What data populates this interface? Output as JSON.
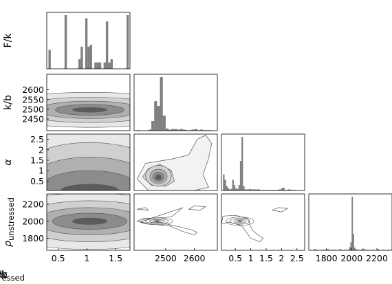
{
  "chart_data": {
    "type": "corner",
    "grid": false,
    "parameters": [
      {
        "key": "Fk",
        "label": "F/k",
        "range": [
          0.3,
          1.75
        ],
        "ticks": [
          "0.5",
          "1",
          "1.5"
        ],
        "tick_values": [
          0.5,
          1.0,
          1.5
        ]
      },
      {
        "key": "kb",
        "label": "k/b",
        "range": [
          2390,
          2680
        ],
        "ticks": [
          "2450",
          "2500",
          "2550",
          "2600"
        ],
        "tick_values": [
          2450,
          2500,
          2550,
          2600
        ],
        "x_ticks": [
          "2500",
          "2600"
        ],
        "x_tick_values": [
          2500,
          2600
        ]
      },
      {
        "key": "alpha",
        "label": "α",
        "range": [
          0.05,
          2.75
        ],
        "ticks": [
          "0.5",
          "1",
          "1.5",
          "2",
          "2.5"
        ],
        "tick_values": [
          0.5,
          1.0,
          1.5,
          2.0,
          2.5
        ]
      },
      {
        "key": "rho",
        "label_base": "ρ",
        "label_sub": "unstressed",
        "range": [
          1660,
          2320
        ],
        "ticks": [
          "1800",
          "2000",
          "2200"
        ],
        "tick_values": [
          1800,
          2000,
          2200
        ]
      }
    ],
    "histograms": {
      "Fk": {
        "bins": [
          0.33,
          0.37,
          0.41,
          0.45,
          0.49,
          0.53,
          0.57,
          0.61,
          0.65,
          0.69,
          0.73,
          0.77,
          0.81,
          0.85,
          0.89,
          0.93,
          0.97,
          1.01,
          1.05,
          1.09,
          1.13,
          1.17,
          1.21,
          1.25,
          1.29,
          1.33,
          1.37,
          1.41,
          1.45,
          1.49,
          1.53,
          1.57,
          1.61,
          1.65,
          1.69,
          1.73
        ],
        "counts": [
          30,
          0,
          0,
          0,
          0,
          0,
          0,
          85,
          0,
          0,
          0,
          0,
          0,
          15,
          35,
          0,
          80,
          35,
          38,
          0,
          10,
          10,
          10,
          0,
          10,
          75,
          10,
          15,
          0,
          0,
          0,
          0,
          0,
          0,
          85,
          0
        ]
      },
      "kb": {
        "bins": [
          2400,
          2410,
          2420,
          2430,
          2440,
          2450,
          2460,
          2470,
          2480,
          2490,
          2500,
          2510,
          2520,
          2530,
          2540,
          2550,
          2560,
          2570,
          2580,
          2590,
          2600,
          2610,
          2620,
          2630,
          2640,
          2650
        ],
        "counts": [
          1,
          0,
          0,
          0,
          2,
          18,
          55,
          46,
          100,
          28,
          4,
          2,
          3,
          3,
          2,
          3,
          2,
          1,
          1,
          2,
          3,
          1,
          2,
          1,
          1,
          1
        ]
      },
      "alpha": {
        "bins": [
          0.1,
          0.15,
          0.2,
          0.25,
          0.3,
          0.35,
          0.4,
          0.45,
          0.5,
          0.55,
          0.6,
          0.65,
          0.7,
          0.75,
          0.8,
          0.85,
          0.9,
          0.95,
          1.0,
          1.1,
          1.2,
          1.3,
          1.4,
          1.5,
          1.6,
          1.7,
          1.8,
          1.9,
          2.0,
          2.1,
          2.2,
          2.3,
          2.4
        ],
        "counts": [
          30,
          20,
          8,
          4,
          2,
          3,
          20,
          10,
          4,
          3,
          10,
          55,
          100,
          8,
          2,
          2,
          2,
          3,
          2,
          2,
          2,
          1,
          1,
          1,
          1,
          1,
          1,
          2,
          5,
          1,
          2,
          1,
          1
        ]
      },
      "rho": {
        "bins": [
          1700,
          1720,
          1740,
          1760,
          1780,
          1800,
          1820,
          1840,
          1860,
          1880,
          1900,
          1920,
          1940,
          1960,
          1980,
          1990,
          2000,
          2010,
          2020,
          2030,
          2040,
          2060,
          2080,
          2100,
          2120,
          2140,
          2160,
          2180,
          2200,
          2220,
          2240,
          2260,
          2280
        ],
        "counts": [
          2,
          1,
          0,
          1,
          1,
          2,
          1,
          1,
          1,
          0,
          2,
          0,
          1,
          1,
          6,
          15,
          100,
          30,
          5,
          2,
          1,
          1,
          3,
          1,
          1,
          0,
          1,
          0,
          2,
          0,
          1,
          0,
          1
        ]
      }
    },
    "contour_panels": [
      {
        "x": "Fk",
        "y": "kb",
        "ellipses": [
          {
            "cx": 1.05,
            "cy": 2497,
            "rx": 1.8,
            "ry": 90,
            "fill": "#e8e8e8"
          },
          {
            "cx": 1.05,
            "cy": 2497,
            "rx": 1.3,
            "ry": 65,
            "fill": "#d0d0d0"
          },
          {
            "cx": 1.05,
            "cy": 2497,
            "rx": 0.9,
            "ry": 45,
            "fill": "#b0b0b0"
          },
          {
            "cx": 1.05,
            "cy": 2497,
            "rx": 0.6,
            "ry": 28,
            "fill": "#8c8c8c"
          },
          {
            "cx": 1.05,
            "cy": 2497,
            "rx": 0.3,
            "ry": 12,
            "fill": "#5c5c5c"
          }
        ]
      },
      {
        "x": "Fk",
        "y": "alpha",
        "ellipses": [
          {
            "cx": 1.05,
            "cy": 0.55,
            "rx": 1.8,
            "ry": 2.6,
            "fill": "#e8e8e8"
          },
          {
            "cx": 1.05,
            "cy": 0.45,
            "rx": 1.4,
            "ry": 1.9,
            "fill": "#d0d0d0"
          },
          {
            "cx": 1.05,
            "cy": 0.35,
            "rx": 1.1,
            "ry": 1.3,
            "fill": "#b0b0b0"
          },
          {
            "cx": 1.05,
            "cy": 0.2,
            "rx": 0.85,
            "ry": 0.8,
            "fill": "#8c8c8c"
          },
          {
            "cx": 1.05,
            "cy": 0.05,
            "rx": 0.5,
            "ry": 0.3,
            "fill": "#5c5c5c"
          }
        ]
      },
      {
        "x": "Fk",
        "y": "rho",
        "ellipses": [
          {
            "cx": 1.05,
            "cy": 2000,
            "rx": 1.8,
            "ry": 330,
            "fill": "#e8e8e8"
          },
          {
            "cx": 1.05,
            "cy": 2000,
            "rx": 1.3,
            "ry": 240,
            "fill": "#d0d0d0"
          },
          {
            "cx": 1.05,
            "cy": 2000,
            "rx": 0.95,
            "ry": 160,
            "fill": "#b0b0b0"
          },
          {
            "cx": 1.05,
            "cy": 2000,
            "rx": 0.65,
            "ry": 95,
            "fill": "#8c8c8c"
          },
          {
            "cx": 1.05,
            "cy": 2000,
            "rx": 0.3,
            "ry": 38,
            "fill": "#5c5c5c"
          }
        ]
      },
      {
        "x": "kb",
        "y": "alpha",
        "blobs": [
          {
            "points": [
              [
                2440,
                0.05
              ],
              [
                2400,
                0.6
              ],
              [
                2430,
                1.35
              ],
              [
                2520,
                1.55
              ],
              [
                2580,
                1.75
              ],
              [
                2610,
                2.5
              ],
              [
                2640,
                2.7
              ],
              [
                2660,
                2.3
              ],
              [
                2650,
                1.6
              ],
              [
                2630,
                0.8
              ],
              [
                2650,
                0.2
              ],
              [
                2600,
                0.05
              ]
            ],
            "fill": "#f2f2f2"
          },
          {
            "points": [
              [
                2450,
                0.3
              ],
              [
                2420,
                0.7
              ],
              [
                2440,
                1.1
              ],
              [
                2480,
                1.3
              ],
              [
                2520,
                1.0
              ],
              [
                2530,
                0.5
              ],
              [
                2500,
                0.25
              ]
            ],
            "fill": "#dddddd"
          }
        ],
        "ellipses": [
          {
            "cx": 2475,
            "cy": 0.75,
            "rx": 45,
            "ry": 0.5,
            "fill": "#d0d0d0"
          },
          {
            "cx": 2475,
            "cy": 0.72,
            "rx": 30,
            "ry": 0.35,
            "fill": "#b0b0b0"
          },
          {
            "cx": 2475,
            "cy": 0.7,
            "rx": 20,
            "ry": 0.22,
            "fill": "#8c8c8c"
          },
          {
            "cx": 2475,
            "cy": 0.68,
            "rx": 10,
            "ry": 0.12,
            "fill": "#5c5c5c"
          }
        ]
      },
      {
        "x": "kb",
        "y": "rho",
        "blobs": [
          {
            "points": [
              [
                2560,
                2160
              ],
              [
                2520,
                2050
              ],
              [
                2470,
                2040
              ],
              [
                2420,
                2030
              ],
              [
                2400,
                2000
              ],
              [
                2430,
                1980
              ],
              [
                2480,
                1985
              ],
              [
                2540,
                1940
              ],
              [
                2590,
                1900
              ],
              [
                2610,
                1870
              ],
              [
                2600,
                1840
              ],
              [
                2560,
                1880
              ],
              [
                2510,
                1950
              ],
              [
                2460,
                1960
              ],
              [
                2430,
                1970
              ],
              [
                2410,
                1990
              ]
            ],
            "fill": "none"
          },
          {
            "points": [
              [
                2580,
                2140
              ],
              [
                2600,
                2180
              ],
              [
                2640,
                2170
              ],
              [
                2620,
                2130
              ]
            ],
            "fill": "none"
          },
          {
            "points": [
              [
                2400,
                2140
              ],
              [
                2430,
                2160
              ],
              [
                2440,
                2130
              ]
            ],
            "fill": "none"
          }
        ],
        "ellipses": [
          {
            "cx": 2470,
            "cy": 2000,
            "rx": 55,
            "ry": 40,
            "fill": "none"
          },
          {
            "cx": 2470,
            "cy": 2000,
            "rx": 40,
            "ry": 28,
            "fill": "none"
          },
          {
            "cx": 2470,
            "cy": 2000,
            "rx": 27,
            "ry": 18,
            "fill": "none"
          },
          {
            "cx": 2470,
            "cy": 2000,
            "rx": 15,
            "ry": 10,
            "fill": "none"
          },
          {
            "cx": 2470,
            "cy": 2000,
            "rx": 7,
            "ry": 5,
            "fill": "#666666"
          }
        ]
      },
      {
        "x": "alpha",
        "y": "rho",
        "blobs": [
          {
            "points": [
              [
                0.1,
                2060
              ],
              [
                0.5,
                2070
              ],
              [
                0.9,
                2030
              ],
              [
                1.05,
                1900
              ],
              [
                1.2,
                1850
              ],
              [
                1.4,
                1800
              ],
              [
                1.3,
                1760
              ],
              [
                1.0,
                1800
              ],
              [
                0.7,
                1950
              ],
              [
                0.3,
                1990
              ],
              [
                0.05,
                1970
              ]
            ],
            "fill": "none"
          },
          {
            "points": [
              [
                1.7,
                2130
              ],
              [
                1.9,
                2160
              ],
              [
                2.2,
                2150
              ],
              [
                2.0,
                2110
              ]
            ],
            "fill": "none"
          }
        ],
        "ellipses": [
          {
            "cx": 0.65,
            "cy": 2000,
            "rx": 0.45,
            "ry": 50,
            "fill": "none"
          },
          {
            "cx": 0.65,
            "cy": 2000,
            "rx": 0.32,
            "ry": 35,
            "fill": "none"
          },
          {
            "cx": 0.65,
            "cy": 2000,
            "rx": 0.2,
            "ry": 22,
            "fill": "none"
          },
          {
            "cx": 0.65,
            "cy": 2000,
            "rx": 0.12,
            "ry": 12,
            "fill": "none"
          },
          {
            "cx": 0.65,
            "cy": 2000,
            "rx": 0.05,
            "ry": 6,
            "fill": "#666666"
          }
        ]
      }
    ],
    "colors": {
      "bar": "#7f7f7f",
      "frame": "#000000",
      "contour_line": "#555555"
    }
  }
}
